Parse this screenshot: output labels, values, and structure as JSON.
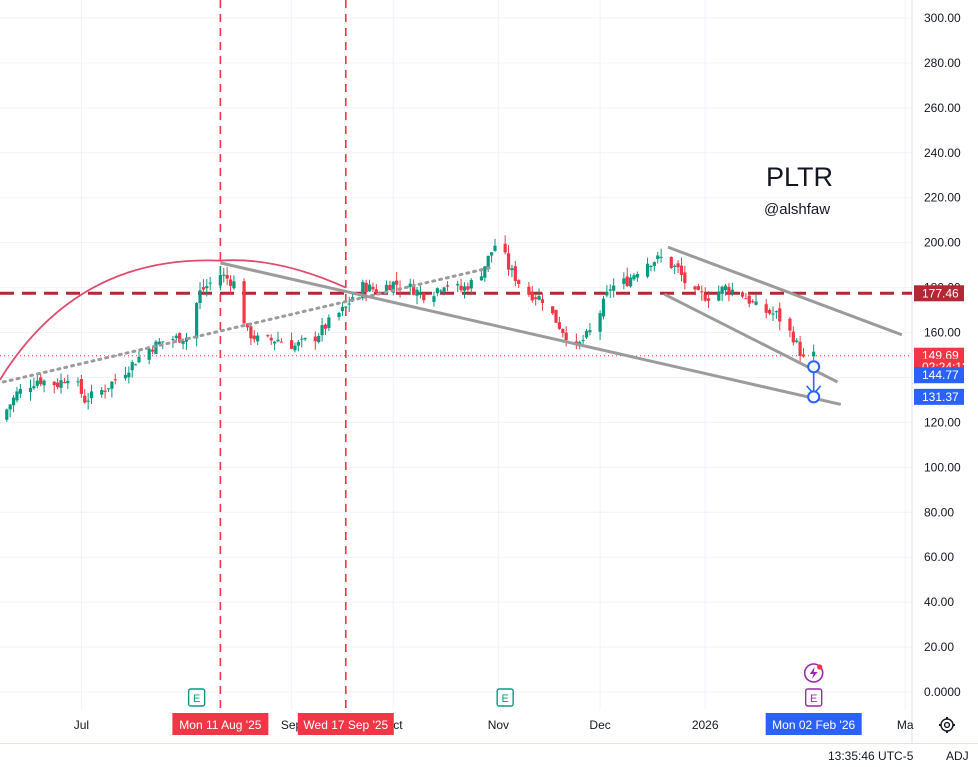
{
  "chart_data": {
    "type": "candlestick",
    "title": "PLTR",
    "subtitle": "@alshfaw",
    "y_ticks": [
      "300.00",
      "280.00",
      "260.00",
      "240.00",
      "220.00",
      "200.00",
      "180.00",
      "160.00",
      "140.00",
      "120.00",
      "100.00",
      "80.00",
      "60.00",
      "40.00",
      "20.00",
      "0.0000"
    ],
    "y_tick_values": [
      300,
      280,
      260,
      240,
      220,
      200,
      180,
      160,
      140,
      120,
      100,
      80,
      60,
      40,
      20,
      0
    ],
    "ylim": [
      -8,
      308
    ],
    "x_ticks": [
      {
        "label": "Jul",
        "date": "2025-07-01"
      },
      {
        "label": "Sep",
        "date": "2025-09-01"
      },
      {
        "label": "Oct",
        "date": "2025-10-01"
      },
      {
        "label": "Nov",
        "date": "2025-11-01"
      },
      {
        "label": "Dec",
        "date": "2025-12-01"
      },
      {
        "label": "2026",
        "date": "2026-01-01"
      },
      {
        "label": "Ma",
        "date": "2026-03-01"
      }
    ],
    "x_range": [
      "2025-06-07",
      "2026-03-03"
    ],
    "close_series": [
      {
        "date": "2025-06-07",
        "close": 121
      },
      {
        "date": "2025-06-12",
        "close": 133
      },
      {
        "date": "2025-06-18",
        "close": 139
      },
      {
        "date": "2025-06-24",
        "close": 137
      },
      {
        "date": "2025-06-28",
        "close": 142
      },
      {
        "date": "2025-07-02",
        "close": 130
      },
      {
        "date": "2025-07-08",
        "close": 135
      },
      {
        "date": "2025-07-14",
        "close": 143
      },
      {
        "date": "2025-07-20",
        "close": 152
      },
      {
        "date": "2025-07-26",
        "close": 157
      },
      {
        "date": "2025-08-01",
        "close": 158
      },
      {
        "date": "2025-08-05",
        "close": 178
      },
      {
        "date": "2025-08-11",
        "close": 186
      },
      {
        "date": "2025-08-15",
        "close": 182
      },
      {
        "date": "2025-08-19",
        "close": 160
      },
      {
        "date": "2025-08-23",
        "close": 156
      },
      {
        "date": "2025-08-28",
        "close": 157
      },
      {
        "date": "2025-09-02",
        "close": 154
      },
      {
        "date": "2025-09-08",
        "close": 158
      },
      {
        "date": "2025-09-13",
        "close": 166
      },
      {
        "date": "2025-09-17",
        "close": 171
      },
      {
        "date": "2025-09-21",
        "close": 181
      },
      {
        "date": "2025-09-26",
        "close": 179
      },
      {
        "date": "2025-10-01",
        "close": 182
      },
      {
        "date": "2025-10-06",
        "close": 180
      },
      {
        "date": "2025-10-11",
        "close": 176
      },
      {
        "date": "2025-10-16",
        "close": 182
      },
      {
        "date": "2025-10-21",
        "close": 179
      },
      {
        "date": "2025-10-26",
        "close": 184
      },
      {
        "date": "2025-11-01",
        "close": 202
      },
      {
        "date": "2025-11-04",
        "close": 189
      },
      {
        "date": "2025-11-09",
        "close": 178
      },
      {
        "date": "2025-11-14",
        "close": 175
      },
      {
        "date": "2025-11-19",
        "close": 163
      },
      {
        "date": "2025-11-24",
        "close": 153
      },
      {
        "date": "2025-11-29",
        "close": 162
      },
      {
        "date": "2025-12-04",
        "close": 180
      },
      {
        "date": "2025-12-09",
        "close": 183
      },
      {
        "date": "2025-12-14",
        "close": 191
      },
      {
        "date": "2025-12-19",
        "close": 193
      },
      {
        "date": "2025-12-24",
        "close": 188
      },
      {
        "date": "2025-12-28",
        "close": 177
      },
      {
        "date": "2026-01-02",
        "close": 176
      },
      {
        "date": "2026-01-07",
        "close": 180
      },
      {
        "date": "2026-01-12",
        "close": 177
      },
      {
        "date": "2026-01-17",
        "close": 170
      },
      {
        "date": "2026-01-22",
        "close": 168
      },
      {
        "date": "2026-01-27",
        "close": 158
      },
      {
        "date": "2026-01-30",
        "close": 148
      },
      {
        "date": "2026-02-02",
        "close": 149.69
      }
    ],
    "price_tags": [
      {
        "label": "177.46",
        "value": 177.46,
        "color": "#b22833"
      },
      {
        "label": "149.69",
        "value": 149.69,
        "color": "#f23645"
      },
      {
        "label": "02:24:12",
        "value": 144.77,
        "color": "#f23645",
        "box": "countdown"
      },
      {
        "label": "144.77",
        "value": 141.0,
        "color": "#2962ff"
      },
      {
        "label": "131.37",
        "value": 131.37,
        "color": "#2962ff"
      }
    ],
    "horizontal_line": {
      "value": 177.46,
      "color": "#b22833",
      "style": "dashed"
    },
    "current_price_line": {
      "value": 149.69,
      "color": "#f23645",
      "style": "dotted"
    },
    "vertical_markers": [
      {
        "date": "2025-08-11",
        "label": "Mon 11 Aug '25",
        "color": "#f23645"
      },
      {
        "date": "2025-09-17",
        "label": "Wed 17 Sep '25",
        "color": "#f23645"
      }
    ],
    "cursor_date_tag": {
      "date": "2026-02-02",
      "label": "Mon 02 Feb '26",
      "color": "#2962ff"
    },
    "event_markers": [
      {
        "date": "2025-08-04",
        "label": "E",
        "color": "#089981"
      },
      {
        "date": "2025-11-03",
        "label": "E",
        "color": "#089981"
      },
      {
        "date": "2026-02-02",
        "label": "E",
        "color": "#9c27b0"
      }
    ],
    "lightning_marker": {
      "date": "2026-02-02",
      "color": "#9c27b0"
    },
    "trendlines": [
      {
        "from": {
          "date": "2025-08-11",
          "value": 191
        },
        "to": {
          "date": "2026-02-10",
          "value": 128
        },
        "color": "#9b9b9b"
      },
      {
        "from": {
          "date": "2025-12-21",
          "value": 198
        },
        "to": {
          "date": "2026-02-28",
          "value": 159
        },
        "color": "#9b9b9b"
      },
      {
        "from": {
          "date": "2025-12-20",
          "value": 177
        },
        "to": {
          "date": "2026-02-09",
          "value": 138
        },
        "color": "#9b9b9b"
      }
    ],
    "dotted_trendline": {
      "from": {
        "date": "2025-06-08",
        "value": 138
      },
      "to": {
        "date": "2025-10-30",
        "value": 189
      },
      "color": "#9b9b9b"
    },
    "arc": {
      "from": {
        "date": "2025-06-07",
        "value": 139
      },
      "peak": {
        "date": "2025-08-11",
        "value": 192
      },
      "to": {
        "date": "2025-09-17",
        "value": 180
      },
      "color": "#e04a6e"
    },
    "projection": {
      "date": "2026-02-02",
      "from_value": 144.77,
      "to_value": 131.37,
      "color": "#2962ff"
    },
    "colors": {
      "up": "#089981",
      "down": "#f23645",
      "grid": "#f0f3fa"
    }
  },
  "footer": {
    "time": "13:35:46 UTC-5",
    "adj": "ADJ"
  },
  "icons": {
    "settings": "gear-icon",
    "lightning": "lightning-icon"
  }
}
